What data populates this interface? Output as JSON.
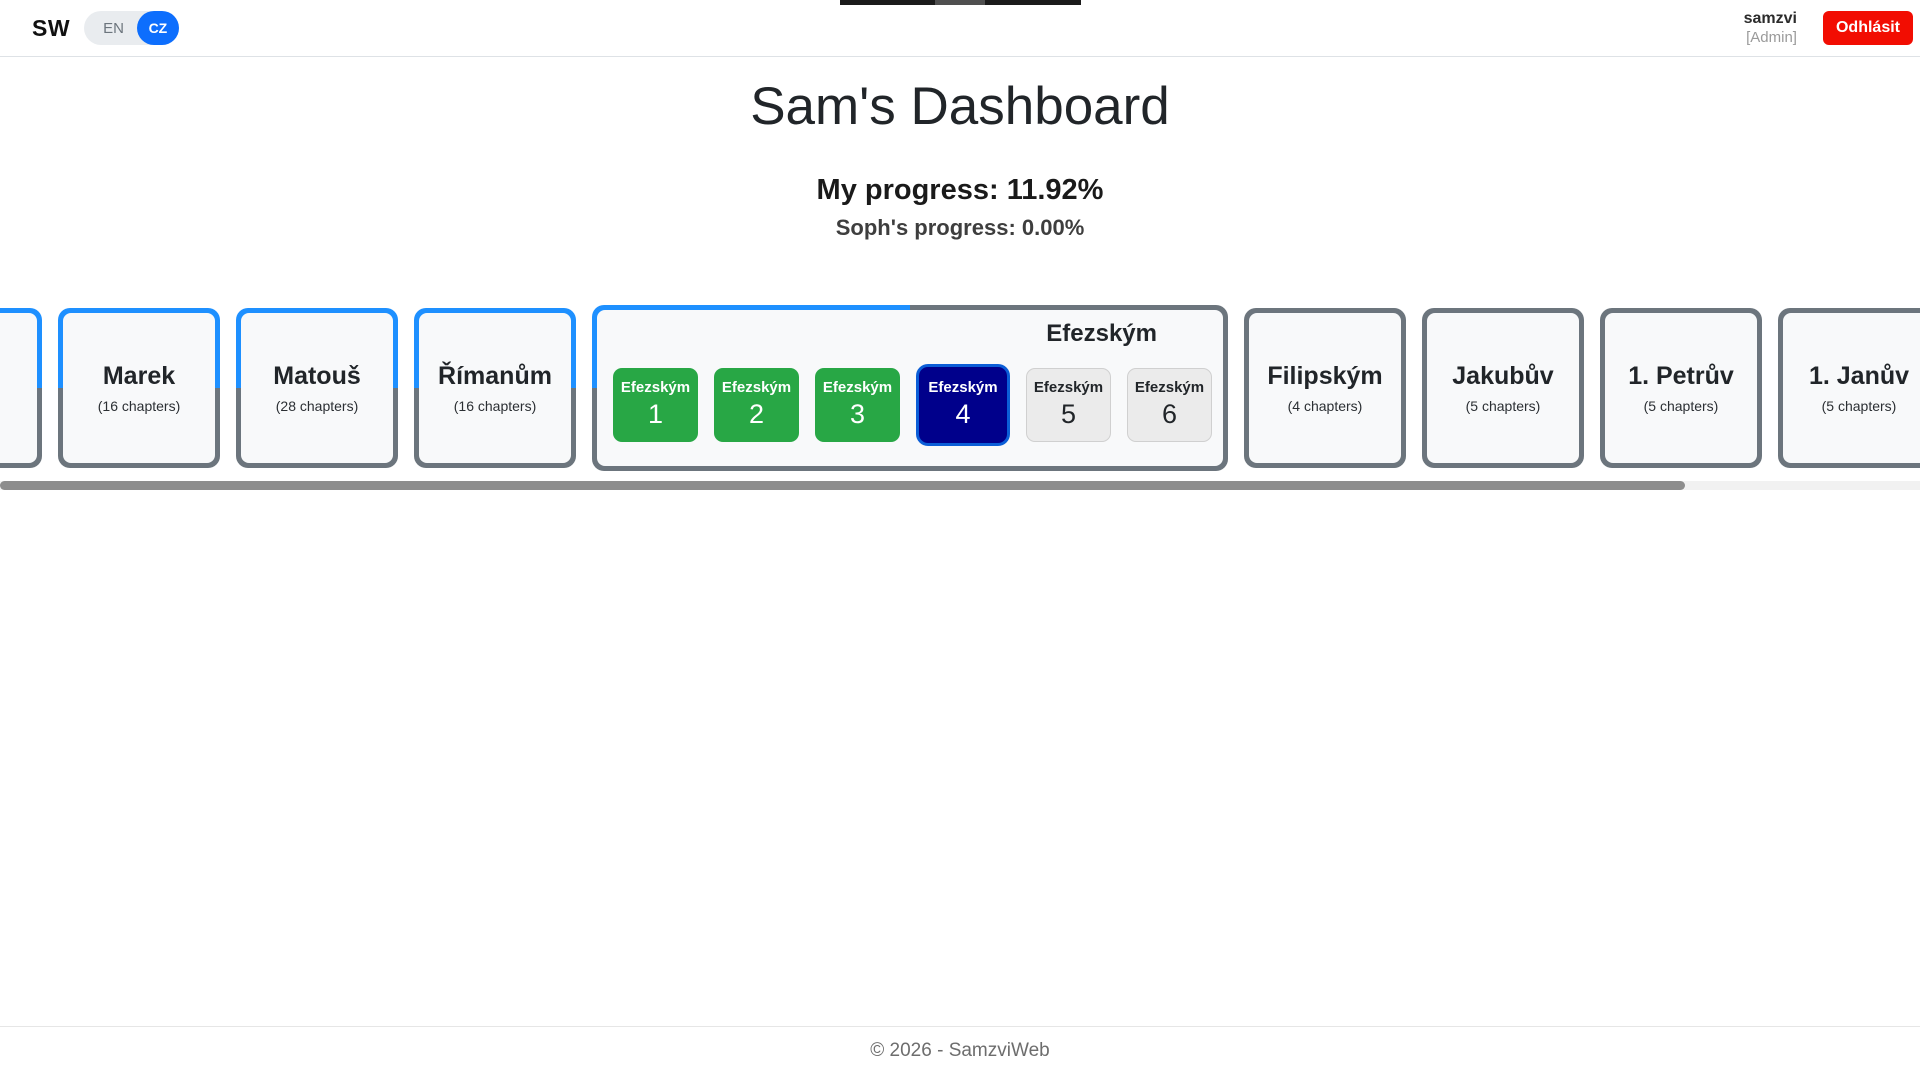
{
  "top_bar": {
    "logo": "SW",
    "lang_toggle": {
      "en_label": "EN",
      "cz_label": "CZ",
      "active": "CZ"
    },
    "user": {
      "name": "samzvi",
      "role": "[Admin]"
    },
    "logout_label": "Odhlásit"
  },
  "header": {
    "title": "Sam's Dashboard",
    "my_progress": "My progress: 11.92%",
    "soph_progress": "Soph's progress: 0.00%"
  },
  "books": [
    {
      "name": "",
      "chapters_label": "",
      "progress": "half",
      "partial": true
    },
    {
      "name": "Marek",
      "chapters_label": "(16 chapters)",
      "progress": "half"
    },
    {
      "name": "Matouš",
      "chapters_label": "(28 chapters)",
      "progress": "half"
    },
    {
      "name": "Římanům",
      "chapters_label": "(16 chapters)",
      "progress": "half"
    },
    {
      "name": "Efezským",
      "progress": "quarter",
      "expanded": true,
      "chapters": [
        {
          "label": "Efezským",
          "number": "1",
          "state": "done"
        },
        {
          "label": "Efezským",
          "number": "2",
          "state": "done"
        },
        {
          "label": "Efezským",
          "number": "3",
          "state": "done"
        },
        {
          "label": "Efezským",
          "number": "4",
          "state": "current"
        },
        {
          "label": "Efezským",
          "number": "5",
          "state": "todo"
        },
        {
          "label": "Efezským",
          "number": "6",
          "state": "todo"
        }
      ]
    },
    {
      "name": "Filipským",
      "chapters_label": "(4 chapters)",
      "progress": "none"
    },
    {
      "name": "Jakubův",
      "chapters_label": "(5 chapters)",
      "progress": "none"
    },
    {
      "name": "1. Petrův",
      "chapters_label": "(5 chapters)",
      "progress": "none"
    },
    {
      "name": "1. Janův",
      "chapters_label": "(5 chapters)",
      "progress": "none"
    }
  ],
  "footer": {
    "copyright": "© 2026 - SamzviWeb"
  },
  "colors": {
    "accent_blue": "#1e90ff",
    "border_gray": "#6c757d",
    "success_green": "#28a745",
    "current_navy": "#00008b",
    "current_ring": "#0b5ed7",
    "logout_red": "#f20d02",
    "lang_active_blue": "#0d6efd"
  }
}
